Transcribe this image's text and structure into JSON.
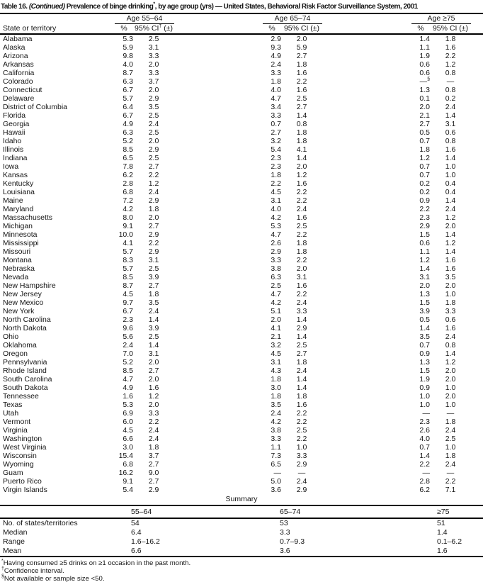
{
  "colors": {
    "text": "#141414",
    "background": "#ffffff",
    "rule": "#000000"
  },
  "title": {
    "label": "Table 16. ",
    "continued": "(Continued) ",
    "main": "Prevalence of binge drinking",
    "note_marker": "*",
    "tail": ", by age group (yrs) — United States, Behavioral Risk Factor Surveillance System, 2001"
  },
  "table": {
    "group_headers": [
      "Age 55–64",
      "Age 65–74",
      "Age ≥75"
    ],
    "state_header": "State or territory",
    "pct_header": "%",
    "ci_header_1": {
      "base": "95% CI",
      "sup": "†",
      "rest": " (±)"
    },
    "ci_header": "95% CI (±)",
    "rows": [
      {
        "state": "Alabama",
        "g1": [
          "5.3",
          "2.5"
        ],
        "g2": [
          "2.9",
          "2.0"
        ],
        "g3": [
          "1.4",
          "1.8"
        ]
      },
      {
        "state": "Alaska",
        "g1": [
          "5.9",
          "3.1"
        ],
        "g2": [
          "9.3",
          "5.9"
        ],
        "g3": [
          "1.1",
          "1.6"
        ]
      },
      {
        "state": "Arizona",
        "g1": [
          "9.8",
          "3.3"
        ],
        "g2": [
          "4.9",
          "2.7"
        ],
        "g3": [
          "1.9",
          "2.2"
        ]
      },
      {
        "state": "Arkansas",
        "g1": [
          "4.0",
          "2.0"
        ],
        "g2": [
          "2.4",
          "1.8"
        ],
        "g3": [
          "0.6",
          "1.2"
        ]
      },
      {
        "state": "California",
        "g1": [
          "8.7",
          "3.3"
        ],
        "g2": [
          "3.3",
          "1.6"
        ],
        "g3": [
          "0.6",
          "0.8"
        ]
      },
      {
        "state": "Colorado",
        "g1": [
          "6.3",
          "3.7"
        ],
        "g2": [
          "1.8",
          "2.2"
        ],
        "g3": [
          "—§",
          "—"
        ]
      },
      {
        "state": "Connecticut",
        "g1": [
          "6.7",
          "2.0"
        ],
        "g2": [
          "4.0",
          "1.6"
        ],
        "g3": [
          "1.3",
          "0.8"
        ]
      },
      {
        "state": "Delaware",
        "g1": [
          "5.7",
          "2.9"
        ],
        "g2": [
          "4.7",
          "2.5"
        ],
        "g3": [
          "0.1",
          "0.2"
        ]
      },
      {
        "state": "District of Columbia",
        "g1": [
          "6.4",
          "3.5"
        ],
        "g2": [
          "3.4",
          "2.7"
        ],
        "g3": [
          "2.0",
          "2.4"
        ]
      },
      {
        "state": "Florida",
        "g1": [
          "6.7",
          "2.5"
        ],
        "g2": [
          "3.3",
          "1.4"
        ],
        "g3": [
          "2.1",
          "1.4"
        ]
      },
      {
        "state": "Georgia",
        "g1": [
          "4.9",
          "2.4"
        ],
        "g2": [
          "0.7",
          "0.8"
        ],
        "g3": [
          "2.7",
          "3.1"
        ]
      },
      {
        "state": "Hawaii",
        "g1": [
          "6.3",
          "2.5"
        ],
        "g2": [
          "2.7",
          "1.8"
        ],
        "g3": [
          "0.5",
          "0.6"
        ]
      },
      {
        "state": "Idaho",
        "g1": [
          "5.2",
          "2.0"
        ],
        "g2": [
          "3.2",
          "1.8"
        ],
        "g3": [
          "0.7",
          "0.8"
        ]
      },
      {
        "state": "Illinois",
        "g1": [
          "8.5",
          "2.9"
        ],
        "g2": [
          "5.4",
          "4.1"
        ],
        "g3": [
          "1.8",
          "1.6"
        ]
      },
      {
        "state": "Indiana",
        "g1": [
          "6.5",
          "2.5"
        ],
        "g2": [
          "2.3",
          "1.4"
        ],
        "g3": [
          "1.2",
          "1.4"
        ]
      },
      {
        "state": "Iowa",
        "g1": [
          "7.8",
          "2.7"
        ],
        "g2": [
          "2.3",
          "2.0"
        ],
        "g3": [
          "0.7",
          "1.0"
        ]
      },
      {
        "state": "Kansas",
        "g1": [
          "6.2",
          "2.2"
        ],
        "g2": [
          "1.8",
          "1.2"
        ],
        "g3": [
          "0.7",
          "1.0"
        ]
      },
      {
        "state": "Kentucky",
        "g1": [
          "2.8",
          "1.2"
        ],
        "g2": [
          "2.2",
          "1.6"
        ],
        "g3": [
          "0.2",
          "0.4"
        ]
      },
      {
        "state": "Louisiana",
        "g1": [
          "6.8",
          "2.4"
        ],
        "g2": [
          "4.5",
          "2.2"
        ],
        "g3": [
          "0.2",
          "0.4"
        ]
      },
      {
        "state": "Maine",
        "g1": [
          "7.2",
          "2.9"
        ],
        "g2": [
          "3.1",
          "2.2"
        ],
        "g3": [
          "0.9",
          "1.4"
        ]
      },
      {
        "state": "Maryland",
        "g1": [
          "4.2",
          "1.8"
        ],
        "g2": [
          "4.0",
          "2.4"
        ],
        "g3": [
          "2.2",
          "2.4"
        ]
      },
      {
        "state": "Massachusetts",
        "g1": [
          "8.0",
          "2.0"
        ],
        "g2": [
          "4.2",
          "1.6"
        ],
        "g3": [
          "2.3",
          "1.2"
        ]
      },
      {
        "state": "Michigan",
        "g1": [
          "9.1",
          "2.7"
        ],
        "g2": [
          "5.3",
          "2.5"
        ],
        "g3": [
          "2.9",
          "2.0"
        ]
      },
      {
        "state": "Minnesota",
        "g1": [
          "10.0",
          "2.9"
        ],
        "g2": [
          "4.7",
          "2.2"
        ],
        "g3": [
          "1.5",
          "1.4"
        ]
      },
      {
        "state": "Mississippi",
        "g1": [
          "4.1",
          "2.2"
        ],
        "g2": [
          "2.6",
          "1.8"
        ],
        "g3": [
          "0.6",
          "1.2"
        ]
      },
      {
        "state": "Missouri",
        "g1": [
          "5.7",
          "2.9"
        ],
        "g2": [
          "2.9",
          "1.8"
        ],
        "g3": [
          "1.1",
          "1.4"
        ]
      },
      {
        "state": "Montana",
        "g1": [
          "8.3",
          "3.1"
        ],
        "g2": [
          "3.3",
          "2.2"
        ],
        "g3": [
          "1.2",
          "1.6"
        ]
      },
      {
        "state": "Nebraska",
        "g1": [
          "5.7",
          "2.5"
        ],
        "g2": [
          "3.8",
          "2.0"
        ],
        "g3": [
          "1.4",
          "1.6"
        ]
      },
      {
        "state": "Nevada",
        "g1": [
          "8.5",
          "3.9"
        ],
        "g2": [
          "6.3",
          "3.1"
        ],
        "g3": [
          "3.1",
          "3.5"
        ]
      },
      {
        "state": "New Hampshire",
        "g1": [
          "8.7",
          "2.7"
        ],
        "g2": [
          "2.5",
          "1.6"
        ],
        "g3": [
          "2.0",
          "2.0"
        ]
      },
      {
        "state": "New Jersey",
        "g1": [
          "4.5",
          "1.8"
        ],
        "g2": [
          "4.7",
          "2.2"
        ],
        "g3": [
          "1.3",
          "1.0"
        ]
      },
      {
        "state": "New Mexico",
        "g1": [
          "9.7",
          "3.5"
        ],
        "g2": [
          "4.2",
          "2.4"
        ],
        "g3": [
          "1.5",
          "1.8"
        ]
      },
      {
        "state": "New York",
        "g1": [
          "6.7",
          "2.4"
        ],
        "g2": [
          "5.1",
          "3.3"
        ],
        "g3": [
          "3.9",
          "3.3"
        ]
      },
      {
        "state": "North Carolina",
        "g1": [
          "2.3",
          "1.4"
        ],
        "g2": [
          "2.0",
          "1.4"
        ],
        "g3": [
          "0.5",
          "0.6"
        ]
      },
      {
        "state": "North Dakota",
        "g1": [
          "9.6",
          "3.9"
        ],
        "g2": [
          "4.1",
          "2.9"
        ],
        "g3": [
          "1.4",
          "1.6"
        ]
      },
      {
        "state": "Ohio",
        "g1": [
          "5.6",
          "2.5"
        ],
        "g2": [
          "2.1",
          "1.4"
        ],
        "g3": [
          "3.5",
          "2.4"
        ]
      },
      {
        "state": "Oklahoma",
        "g1": [
          "2.4",
          "1.4"
        ],
        "g2": [
          "3.2",
          "2.5"
        ],
        "g3": [
          "0.7",
          "0.8"
        ]
      },
      {
        "state": "Oregon",
        "g1": [
          "7.0",
          "3.1"
        ],
        "g2": [
          "4.5",
          "2.7"
        ],
        "g3": [
          "0.9",
          "1.4"
        ]
      },
      {
        "state": "Pennsylvania",
        "g1": [
          "5.2",
          "2.0"
        ],
        "g2": [
          "3.1",
          "1.8"
        ],
        "g3": [
          "1.3",
          "1.2"
        ]
      },
      {
        "state": "Rhode Island",
        "g1": [
          "8.5",
          "2.7"
        ],
        "g2": [
          "4.3",
          "2.4"
        ],
        "g3": [
          "1.5",
          "2.0"
        ]
      },
      {
        "state": "South Carolina",
        "g1": [
          "4.7",
          "2.0"
        ],
        "g2": [
          "1.8",
          "1.4"
        ],
        "g3": [
          "1.9",
          "2.0"
        ]
      },
      {
        "state": "South Dakota",
        "g1": [
          "4.9",
          "1.6"
        ],
        "g2": [
          "3.0",
          "1.4"
        ],
        "g3": [
          "0.9",
          "1.0"
        ]
      },
      {
        "state": "Tennessee",
        "g1": [
          "1.6",
          "1.2"
        ],
        "g2": [
          "1.8",
          "1.8"
        ],
        "g3": [
          "1.0",
          "2.0"
        ]
      },
      {
        "state": "Texas",
        "g1": [
          "5.3",
          "2.0"
        ],
        "g2": [
          "3.5",
          "1.6"
        ],
        "g3": [
          "1.0",
          "1.0"
        ]
      },
      {
        "state": "Utah",
        "g1": [
          "6.9",
          "3.3"
        ],
        "g2": [
          "2.4",
          "2.2"
        ],
        "g3": [
          "—",
          "—"
        ]
      },
      {
        "state": "Vermont",
        "g1": [
          "6.0",
          "2.2"
        ],
        "g2": [
          "4.2",
          "2.2"
        ],
        "g3": [
          "2.3",
          "1.8"
        ]
      },
      {
        "state": "Virginia",
        "g1": [
          "4.5",
          "2.4"
        ],
        "g2": [
          "3.8",
          "2.5"
        ],
        "g3": [
          "2.6",
          "2.4"
        ]
      },
      {
        "state": "Washington",
        "g1": [
          "6.6",
          "2.4"
        ],
        "g2": [
          "3.3",
          "2.2"
        ],
        "g3": [
          "4.0",
          "2.5"
        ]
      },
      {
        "state": "West Virginia",
        "g1": [
          "3.0",
          "1.8"
        ],
        "g2": [
          "1.1",
          "1.0"
        ],
        "g3": [
          "0.7",
          "1.0"
        ]
      },
      {
        "state": "Wisconsin",
        "g1": [
          "15.4",
          "3.7"
        ],
        "g2": [
          "7.3",
          "3.3"
        ],
        "g3": [
          "1.4",
          "1.8"
        ]
      },
      {
        "state": "Wyoming",
        "g1": [
          "6.8",
          "2.7"
        ],
        "g2": [
          "6.5",
          "2.9"
        ],
        "g3": [
          "2.2",
          "2.4"
        ]
      },
      {
        "state": "Guam",
        "g1": [
          "16.2",
          "9.0"
        ],
        "g2": [
          "—",
          "—"
        ],
        "g3": [
          "—",
          "—"
        ]
      },
      {
        "state": "Puerto Rico",
        "g1": [
          "9.1",
          "2.7"
        ],
        "g2": [
          "5.0",
          "2.4"
        ],
        "g3": [
          "2.8",
          "2.2"
        ]
      },
      {
        "state": "Virgin Islands",
        "g1": [
          "5.4",
          "2.9"
        ],
        "g2": [
          "3.6",
          "2.9"
        ],
        "g3": [
          "6.2",
          "7.1"
        ]
      }
    ]
  },
  "summary": {
    "heading": "Summary",
    "col_headers": [
      "55–64",
      "65–74",
      "≥75"
    ],
    "rows": [
      {
        "label": "No. of states/territories",
        "values": [
          "54",
          "53",
          "51"
        ]
      },
      {
        "label": "Median",
        "values": [
          "6.4",
          "3.3",
          "1.4"
        ]
      },
      {
        "label": "Range",
        "values": [
          "1.6–16.2",
          "0.7–9.3",
          "0.1–6.2"
        ]
      },
      {
        "label": "Mean",
        "values": [
          "6.6",
          "3.6",
          "1.6"
        ]
      }
    ]
  },
  "footnotes": [
    {
      "marker": "*",
      "text": "Having consumed ≥5 drinks on ≥1 occasion in the past month."
    },
    {
      "marker": "†",
      "text": "Confidence interval."
    },
    {
      "marker": "§",
      "text": "Not available or sample size <50."
    }
  ]
}
